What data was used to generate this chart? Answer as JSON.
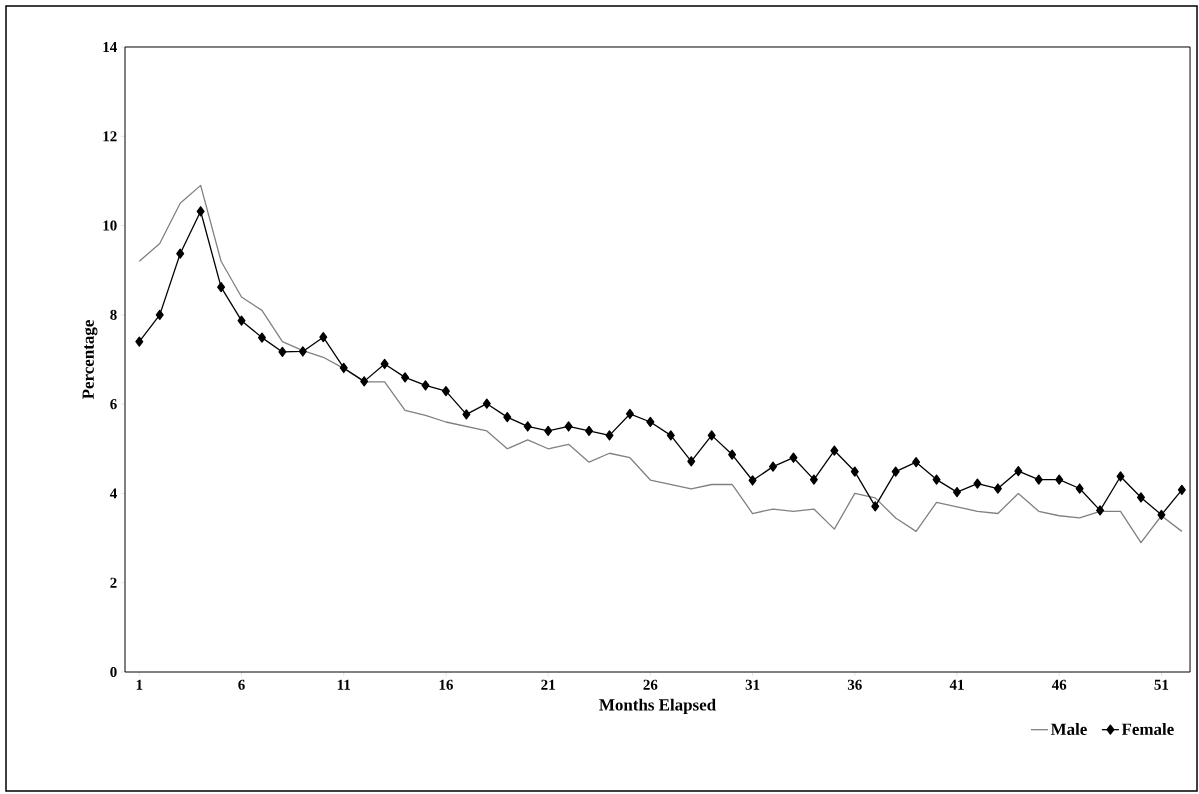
{
  "chart_data": {
    "type": "line",
    "xlabel": "Months Elapsed",
    "ylabel": "Percentage",
    "x": [
      1,
      2,
      3,
      4,
      5,
      6,
      7,
      8,
      9,
      10,
      11,
      12,
      13,
      14,
      15,
      16,
      17,
      18,
      19,
      20,
      21,
      22,
      23,
      24,
      25,
      26,
      27,
      28,
      29,
      30,
      31,
      32,
      33,
      34,
      35,
      36,
      37,
      38,
      39,
      40,
      41,
      42,
      43,
      44,
      45,
      46,
      47,
      48,
      49,
      50,
      51,
      52
    ],
    "series": [
      {
        "name": "Male",
        "color": "#808080",
        "marker": "none",
        "values": [
          9.2,
          9.6,
          10.5,
          10.9,
          9.2,
          8.4,
          8.1,
          7.4,
          7.2,
          7.05,
          6.8,
          6.5,
          6.5,
          5.86,
          5.75,
          5.6,
          5.5,
          5.4,
          5.0,
          5.2,
          5.0,
          5.1,
          4.7,
          4.9,
          4.8,
          4.3,
          4.2,
          4.1,
          4.2,
          4.2,
          3.55,
          3.65,
          3.6,
          3.65,
          3.2,
          4.0,
          3.9,
          3.45,
          3.15,
          3.8,
          3.7,
          3.6,
          3.55,
          4.0,
          3.6,
          3.5,
          3.45,
          3.6,
          3.6,
          2.9,
          3.5,
          3.15
        ]
      },
      {
        "name": "Female",
        "color": "#000000",
        "marker": "diamond",
        "values": [
          7.4,
          8.0,
          9.37,
          10.32,
          8.62,
          7.87,
          7.49,
          7.17,
          7.18,
          7.5,
          6.81,
          6.51,
          6.9,
          6.6,
          6.42,
          6.29,
          5.77,
          6.01,
          5.71,
          5.5,
          5.4,
          5.5,
          5.4,
          5.3,
          5.78,
          5.6,
          5.3,
          4.72,
          5.3,
          4.87,
          4.29,
          4.6,
          4.8,
          4.31,
          4.96,
          4.49,
          3.71,
          4.49,
          4.7,
          4.31,
          4.03,
          4.22,
          4.11,
          4.5,
          4.31,
          4.31,
          4.11,
          3.62,
          4.38,
          3.91,
          3.52,
          4.08
        ]
      }
    ],
    "xlim": [
      0.3,
      52.4
    ],
    "xticks": [
      1,
      6,
      11,
      16,
      21,
      26,
      31,
      36,
      41,
      46,
      51
    ],
    "ylim": [
      0,
      14
    ],
    "yticks": [
      0,
      2,
      4,
      6,
      8,
      10,
      12,
      14
    ],
    "legend": "bottom"
  }
}
